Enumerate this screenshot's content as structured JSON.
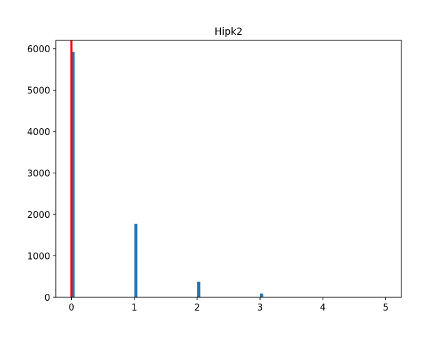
{
  "chart_data": {
    "type": "bar",
    "title": "Hipk2",
    "xlabel": "",
    "ylabel": "",
    "xlim": [
      -0.25,
      5.25
    ],
    "ylim": [
      0,
      6200
    ],
    "x_ticks": [
      0,
      1,
      2,
      3,
      4,
      5
    ],
    "y_ticks": [
      0,
      1000,
      2000,
      3000,
      4000,
      5000,
      6000
    ],
    "grid": false,
    "legend": "none",
    "bars": [
      {
        "x": 0,
        "value": 5920
      },
      {
        "x": 1,
        "value": 1770
      },
      {
        "x": 2,
        "value": 375
      },
      {
        "x": 3,
        "value": 90
      },
      {
        "x": 4,
        "value": 6
      },
      {
        "x": 5,
        "value": 2
      }
    ],
    "bar_width": 0.05,
    "vline": {
      "x": 0,
      "color": "#ff0000"
    },
    "bar_color": "#1f77b4"
  }
}
